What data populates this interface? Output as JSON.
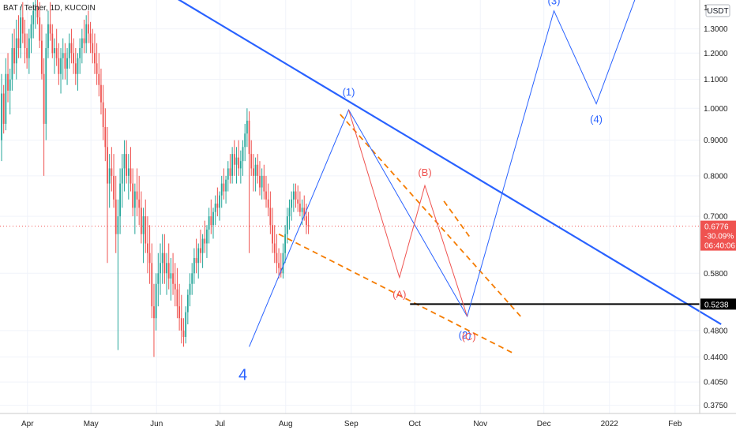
{
  "header": {
    "title": "BAT / Tether, 1D, KUCOIN",
    "currency": "USDT"
  },
  "colors": {
    "up": "#26a69a",
    "down": "#ef5350",
    "trend": "#2962ff",
    "wave_blue": "#2962ff",
    "wave_red": "#ef5350",
    "channel": "#f57c00",
    "support": "#000000",
    "price_tag": "#ef5350"
  },
  "chart_data": {
    "type": "candlestick",
    "symbol": "BAT / Tether",
    "timeframe": "1D",
    "exchange": "KUCOIN",
    "y_scale": "log",
    "ylim": [
      0.365,
      1.43
    ],
    "y_ticks": [
      "1.3000",
      "1.2000",
      "1.1000",
      "1.0000",
      "0.9000",
      "0.8000",
      "0.7000",
      "0.5800",
      "0.4800",
      "0.4400",
      "0.4050",
      "0.3750"
    ],
    "y_tick_values": [
      1.3,
      1.2,
      1.1,
      1.0,
      0.9,
      0.8,
      0.7,
      0.58,
      0.48,
      0.44,
      0.405,
      0.375
    ],
    "top_partial_tick": "1",
    "x_ticks": [
      "Apr",
      "May",
      "Jun",
      "Jul",
      "Aug",
      "Sep",
      "Oct",
      "Nov",
      "Dec",
      "2022",
      "Feb"
    ],
    "last_price": {
      "value": "0.6776",
      "change": "-30.09%",
      "countdown": "06:40:06"
    },
    "support_level": {
      "value": 0.5238,
      "label": "0.5238"
    },
    "trendline": {
      "from": {
        "date": "2021-04-23",
        "price": 1.8
      },
      "to": {
        "date": "2022-02-28",
        "price": 0.49
      }
    },
    "channel": {
      "upper": [
        {
          "date": "2021-09-01",
          "price": 0.98
        },
        {
          "date": "2021-11-26",
          "price": 0.5
        }
      ],
      "middle": [
        {
          "date": "2021-10-20",
          "price": 0.736
        },
        {
          "date": "2021-11-01",
          "price": 0.655
        }
      ],
      "lower": [
        {
          "date": "2021-08-03",
          "price": 0.66
        },
        {
          "date": "2021-11-22",
          "price": 0.445
        }
      ]
    },
    "waves_blue": [
      {
        "date": "2021-07-20",
        "price": 0.455,
        "label": "4"
      },
      {
        "date": "2021-09-05",
        "price": 0.995,
        "label": "(1)"
      },
      {
        "date": "2021-10-31",
        "price": 0.503,
        "label": "(2)"
      },
      {
        "date": "2021-12-11",
        "price": 1.38,
        "label": "(3)"
      },
      {
        "date": "2021-12-31",
        "price": 1.015,
        "label": "(4)"
      },
      {
        "date": "2022-01-20",
        "price": 1.48,
        "label": ""
      }
    ],
    "waves_red": [
      {
        "date": "2021-09-05",
        "price": 0.995,
        "label": ""
      },
      {
        "date": "2021-09-29",
        "price": 0.572,
        "label": "(A)"
      },
      {
        "date": "2021-10-11",
        "price": 0.775,
        "label": "(B)"
      },
      {
        "date": "2021-10-31",
        "price": 0.503,
        "label": "(C)"
      }
    ],
    "candles": [
      [
        0.9,
        1.12,
        0.84,
        1.05
      ],
      [
        1.05,
        1.08,
        0.92,
        0.95
      ],
      [
        0.95,
        1.18,
        0.93,
        1.12
      ],
      [
        1.12,
        1.2,
        1.02,
        1.06
      ],
      [
        1.06,
        1.14,
        0.98,
        1.1
      ],
      [
        1.1,
        1.28,
        1.06,
        1.22
      ],
      [
        1.22,
        1.3,
        1.12,
        1.16
      ],
      [
        1.16,
        1.34,
        1.1,
        1.26
      ],
      [
        1.26,
        1.36,
        1.18,
        1.22
      ],
      [
        1.22,
        1.4,
        1.18,
        1.35
      ],
      [
        1.35,
        1.42,
        1.24,
        1.28
      ],
      [
        1.28,
        1.34,
        1.16,
        1.22
      ],
      [
        1.22,
        1.28,
        1.14,
        1.18
      ],
      [
        1.18,
        1.3,
        1.12,
        1.26
      ],
      [
        1.26,
        1.36,
        1.2,
        1.32
      ],
      [
        1.32,
        1.42,
        1.26,
        1.38
      ],
      [
        1.38,
        1.45,
        1.3,
        1.4
      ],
      [
        1.4,
        1.48,
        1.32,
        1.35
      ],
      [
        1.35,
        1.42,
        1.22,
        1.25
      ],
      [
        1.25,
        1.32,
        1.1,
        1.12
      ],
      [
        1.12,
        1.18,
        0.8,
        0.95
      ],
      [
        0.95,
        1.28,
        0.9,
        1.22
      ],
      [
        1.22,
        1.38,
        1.18,
        1.32
      ],
      [
        1.32,
        1.42,
        1.25,
        1.28
      ],
      [
        1.28,
        1.32,
        1.18,
        1.2
      ],
      [
        1.2,
        1.26,
        1.12,
        1.22
      ],
      [
        1.22,
        1.3,
        1.15,
        1.18
      ],
      [
        1.18,
        1.24,
        1.08,
        1.12
      ],
      [
        1.12,
        1.22,
        1.05,
        1.18
      ],
      [
        1.18,
        1.26,
        1.1,
        1.2
      ],
      [
        1.2,
        1.24,
        1.1,
        1.14
      ],
      [
        1.14,
        1.22,
        1.08,
        1.18
      ],
      [
        1.18,
        1.28,
        1.14,
        1.24
      ],
      [
        1.24,
        1.3,
        1.16,
        1.2
      ],
      [
        1.2,
        1.26,
        1.12,
        1.16
      ],
      [
        1.16,
        1.22,
        1.08,
        1.12
      ],
      [
        1.12,
        1.2,
        1.06,
        1.18
      ],
      [
        1.18,
        1.26,
        1.12,
        1.22
      ],
      [
        1.22,
        1.3,
        1.16,
        1.26
      ],
      [
        1.26,
        1.34,
        1.2,
        1.24
      ],
      [
        1.24,
        1.36,
        1.2,
        1.32
      ],
      [
        1.32,
        1.38,
        1.24,
        1.28
      ],
      [
        1.28,
        1.33,
        1.2,
        1.24
      ],
      [
        1.24,
        1.3,
        1.16,
        1.2
      ],
      [
        1.2,
        1.28,
        1.12,
        1.16
      ],
      [
        1.16,
        1.24,
        1.08,
        1.12
      ],
      [
        1.12,
        1.2,
        1.04,
        1.08
      ],
      [
        1.08,
        1.14,
        0.98,
        1.02
      ],
      [
        1.02,
        1.08,
        0.9,
        0.94
      ],
      [
        0.94,
        1.0,
        0.84,
        0.88
      ],
      [
        0.88,
        0.94,
        0.6,
        0.78
      ],
      [
        0.78,
        0.86,
        0.72,
        0.82
      ],
      [
        0.82,
        0.88,
        0.76,
        0.8
      ],
      [
        0.8,
        0.86,
        0.72,
        0.74
      ],
      [
        0.74,
        0.8,
        0.62,
        0.66
      ],
      [
        0.66,
        0.74,
        0.45,
        0.7
      ],
      [
        0.7,
        0.82,
        0.66,
        0.78
      ],
      [
        0.78,
        0.86,
        0.72,
        0.82
      ],
      [
        0.82,
        0.9,
        0.76,
        0.86
      ],
      [
        0.86,
        0.9,
        0.78,
        0.8
      ],
      [
        0.8,
        0.86,
        0.74,
        0.82
      ],
      [
        0.82,
        0.88,
        0.76,
        0.78
      ],
      [
        0.78,
        0.82,
        0.7,
        0.72
      ],
      [
        0.72,
        0.78,
        0.66,
        0.76
      ],
      [
        0.76,
        0.82,
        0.7,
        0.74
      ],
      [
        0.74,
        0.8,
        0.68,
        0.72
      ],
      [
        0.72,
        0.76,
        0.64,
        0.66
      ],
      [
        0.66,
        0.72,
        0.6,
        0.7
      ],
      [
        0.7,
        0.74,
        0.62,
        0.64
      ],
      [
        0.64,
        0.7,
        0.58,
        0.62
      ],
      [
        0.62,
        0.68,
        0.56,
        0.6
      ],
      [
        0.6,
        0.64,
        0.5,
        0.52
      ],
      [
        0.52,
        0.56,
        0.44,
        0.5
      ],
      [
        0.5,
        0.58,
        0.48,
        0.56
      ],
      [
        0.56,
        0.62,
        0.52,
        0.58
      ],
      [
        0.58,
        0.64,
        0.54,
        0.6
      ],
      [
        0.6,
        0.66,
        0.56,
        0.62
      ],
      [
        0.62,
        0.66,
        0.56,
        0.58
      ],
      [
        0.58,
        0.62,
        0.54,
        0.6
      ],
      [
        0.6,
        0.64,
        0.55,
        0.57
      ],
      [
        0.57,
        0.61,
        0.53,
        0.58
      ],
      [
        0.58,
        0.62,
        0.54,
        0.56
      ],
      [
        0.56,
        0.6,
        0.52,
        0.55
      ],
      [
        0.55,
        0.59,
        0.5,
        0.52
      ],
      [
        0.52,
        0.56,
        0.48,
        0.5
      ],
      [
        0.5,
        0.54,
        0.46,
        0.48
      ],
      [
        0.48,
        0.5,
        0.455,
        0.47
      ],
      [
        0.47,
        0.52,
        0.46,
        0.51
      ],
      [
        0.51,
        0.55,
        0.49,
        0.54
      ],
      [
        0.54,
        0.58,
        0.52,
        0.56
      ],
      [
        0.56,
        0.6,
        0.54,
        0.58
      ],
      [
        0.58,
        0.63,
        0.56,
        0.61
      ],
      [
        0.61,
        0.65,
        0.58,
        0.6
      ],
      [
        0.6,
        0.64,
        0.57,
        0.63
      ],
      [
        0.63,
        0.67,
        0.6,
        0.62
      ],
      [
        0.62,
        0.66,
        0.59,
        0.65
      ],
      [
        0.65,
        0.69,
        0.62,
        0.64
      ],
      [
        0.64,
        0.68,
        0.61,
        0.67
      ],
      [
        0.67,
        0.72,
        0.64,
        0.7
      ],
      [
        0.7,
        0.74,
        0.66,
        0.68
      ],
      [
        0.68,
        0.72,
        0.65,
        0.71
      ],
      [
        0.71,
        0.75,
        0.68,
        0.73
      ],
      [
        0.73,
        0.77,
        0.7,
        0.72
      ],
      [
        0.72,
        0.76,
        0.69,
        0.75
      ],
      [
        0.75,
        0.8,
        0.72,
        0.78
      ],
      [
        0.78,
        0.82,
        0.74,
        0.76
      ],
      [
        0.76,
        0.8,
        0.73,
        0.79
      ],
      [
        0.79,
        0.84,
        0.76,
        0.82
      ],
      [
        0.82,
        0.86,
        0.78,
        0.8
      ],
      [
        0.8,
        0.88,
        0.78,
        0.86
      ],
      [
        0.86,
        0.9,
        0.8,
        0.83
      ],
      [
        0.83,
        0.88,
        0.78,
        0.85
      ],
      [
        0.85,
        0.9,
        0.8,
        0.82
      ],
      [
        0.82,
        0.87,
        0.78,
        0.84
      ],
      [
        0.84,
        0.9,
        0.8,
        0.88
      ],
      [
        0.88,
        0.95,
        0.84,
        0.92
      ],
      [
        0.92,
        1.0,
        0.88,
        0.96
      ],
      [
        0.96,
        0.99,
        0.62,
        0.86
      ],
      [
        0.86,
        0.9,
        0.8,
        0.82
      ],
      [
        0.82,
        0.86,
        0.76,
        0.8
      ],
      [
        0.8,
        0.85,
        0.76,
        0.83
      ],
      [
        0.83,
        0.86,
        0.78,
        0.8
      ],
      [
        0.8,
        0.84,
        0.75,
        0.77
      ],
      [
        0.77,
        0.82,
        0.74,
        0.8
      ],
      [
        0.8,
        0.83,
        0.74,
        0.76
      ],
      [
        0.76,
        0.8,
        0.72,
        0.74
      ],
      [
        0.74,
        0.78,
        0.7,
        0.72
      ],
      [
        0.72,
        0.76,
        0.66,
        0.68
      ],
      [
        0.68,
        0.72,
        0.62,
        0.64
      ],
      [
        0.64,
        0.68,
        0.6,
        0.62
      ],
      [
        0.62,
        0.66,
        0.58,
        0.6
      ],
      [
        0.6,
        0.63,
        0.57,
        0.59
      ],
      [
        0.59,
        0.62,
        0.572,
        0.58
      ],
      [
        0.58,
        0.64,
        0.57,
        0.62
      ],
      [
        0.62,
        0.68,
        0.6,
        0.66
      ],
      [
        0.66,
        0.72,
        0.64,
        0.7
      ],
      [
        0.7,
        0.74,
        0.67,
        0.72
      ],
      [
        0.72,
        0.76,
        0.69,
        0.74
      ],
      [
        0.74,
        0.78,
        0.71,
        0.76
      ],
      [
        0.76,
        0.78,
        0.72,
        0.74
      ],
      [
        0.74,
        0.775,
        0.71,
        0.73
      ],
      [
        0.73,
        0.76,
        0.7,
        0.71
      ],
      [
        0.71,
        0.74,
        0.68,
        0.72
      ],
      [
        0.72,
        0.75,
        0.69,
        0.7
      ],
      [
        0.7,
        0.73,
        0.66,
        0.68
      ],
      [
        0.68,
        0.71,
        0.66,
        0.6776
      ]
    ],
    "candle_start": "2021-03-25",
    "last_candle": "2021-10-19"
  }
}
